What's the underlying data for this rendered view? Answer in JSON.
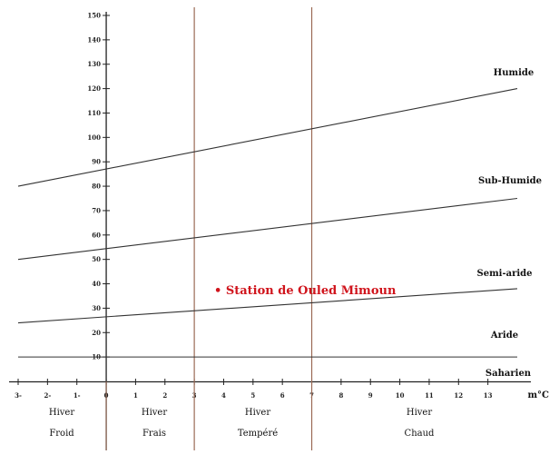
{
  "diagram": {
    "y_axis": {
      "range": [
        0,
        150
      ],
      "ticks": [
        "10",
        "20",
        "30",
        "40",
        "50",
        "60",
        "70",
        "80",
        "90",
        "100",
        "110",
        "120",
        "130",
        "140",
        "150"
      ]
    },
    "x_axis": {
      "range": [
        -3,
        14
      ],
      "ticks": [
        "3-",
        "2-",
        "1-",
        "0",
        "1",
        "2",
        "3",
        "4",
        "5",
        "6",
        "7",
        "8",
        "9",
        "10",
        "11",
        "12",
        "13"
      ],
      "unit": "m°C"
    },
    "zone_boundaries": [
      {
        "x": [
          -3,
          14
        ],
        "y": [
          80,
          120
        ]
      },
      {
        "x": [
          -3,
          14
        ],
        "y": [
          50,
          75
        ]
      },
      {
        "x": [
          -3,
          14
        ],
        "y": [
          24,
          38
        ]
      },
      {
        "x": [
          -3,
          14
        ],
        "y": [
          10,
          10
        ]
      }
    ],
    "zones": [
      {
        "label": "Humide"
      },
      {
        "label": "Sub-Humide"
      },
      {
        "label": "Semi-aride"
      },
      {
        "label": "Aride"
      },
      {
        "label": "Saharien"
      }
    ],
    "winter_boundaries": [
      0,
      3,
      7
    ],
    "seasons": [
      {
        "line1": "Hiver",
        "line2": "Froid"
      },
      {
        "line1": "Hiver",
        "line2": "Frais"
      },
      {
        "line1": "Hiver",
        "line2": "Tempéré"
      },
      {
        "line1": "Hiver",
        "line2": "Chaud"
      }
    ],
    "station": {
      "label": "• Station de Ouled Mimoun"
    },
    "colors": {
      "axis": "#222222",
      "boundary": "#9b6a55",
      "station": "#d0141c"
    }
  }
}
